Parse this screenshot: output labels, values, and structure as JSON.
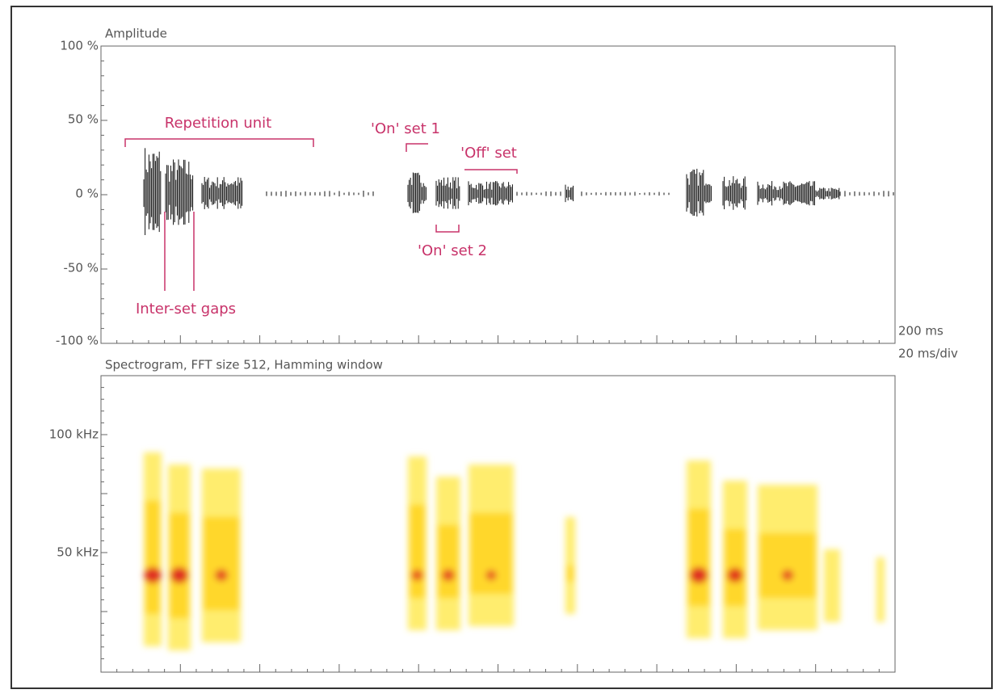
{
  "oscillogram": {
    "title": "Amplitude",
    "yticks": [
      "100 %",
      "50 %",
      "0 %",
      "-50 %",
      "-100 %"
    ]
  },
  "annotations": {
    "repetition_unit": "Repetition unit",
    "on_set_1": "'On' set 1",
    "off_set": "'Off' set",
    "on_set_2": "'On' set 2",
    "inter_set_gaps": "Inter-set gaps"
  },
  "time_scale": {
    "span": "200 ms",
    "division": "20 ms/div"
  },
  "spectrogram": {
    "title": "Spectrogram, FFT size 512, Hamming window",
    "yticks": [
      "100 kHz",
      "50 kHz"
    ]
  }
}
